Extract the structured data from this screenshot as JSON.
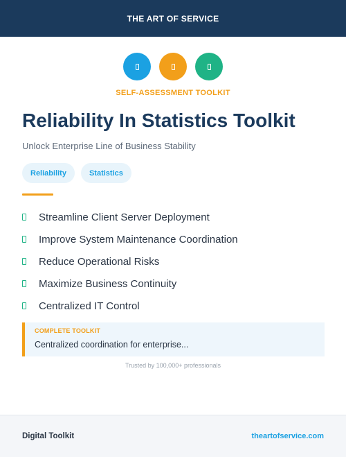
{
  "header": {
    "brand": "THE ART OF SERVICE"
  },
  "icons": [
    {
      "name": "badge-icon",
      "color": "#1ba1e2"
    },
    {
      "name": "badge-icon",
      "color": "#f29f1a"
    },
    {
      "name": "badge-icon",
      "color": "#1fb386"
    }
  ],
  "eyebrow": "SELF-ASSESSMENT TOOLKIT",
  "title": "Reliability In Statistics Toolkit",
  "subtitle": "Unlock Enterprise Line of Business Stability",
  "tags": [
    "Reliability",
    "Statistics"
  ],
  "features": [
    "Streamline Client Server Deployment",
    "Improve System Maintenance Coordination",
    "Reduce Operational Risks",
    "Maximize Business Continuity",
    "Centralized IT Control"
  ],
  "callout": {
    "label": "COMPLETE TOOLKIT",
    "text": "Centralized coordination for enterprise..."
  },
  "trust": "Trusted by 100,000+ professionals",
  "footer": {
    "label": "Digital Toolkit",
    "link": "theartofservice.com"
  },
  "colors": {
    "navy": "#1b3a5c",
    "accent_orange": "#f29f1a",
    "accent_blue": "#1ba1e2",
    "accent_green": "#1fb386"
  }
}
